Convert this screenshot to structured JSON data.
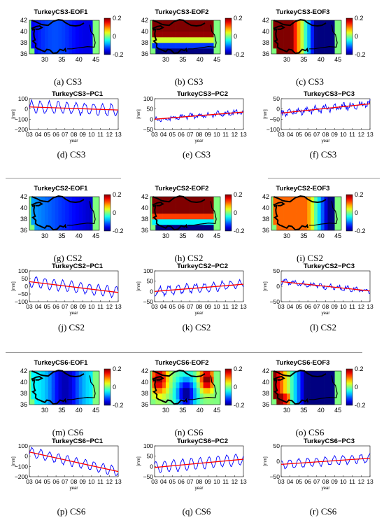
{
  "map_panels": [
    {
      "title": "TurkeyCS3-EOF1",
      "caption": "(a) CS3",
      "field": "cs3_eof1"
    },
    {
      "title": "TurkeyCS3-EOF2",
      "caption": "(b) CS3",
      "field": "cs3_eof2"
    },
    {
      "title": "TurkeyCS3-EOF3",
      "caption": "(c) CS3",
      "field": "cs3_eof3"
    },
    {
      "title": "TurkeyCS2-EOF1",
      "caption": "(g) CS2",
      "field": "cs2_eof1"
    },
    {
      "title": "TurkeyCS2-EOF2",
      "caption": "(h) CS2",
      "field": "cs2_eof2"
    },
    {
      "title": "TurkeyCS2-EOF3",
      "caption": "(i) CS2",
      "field": "cs2_eof3"
    },
    {
      "title": "TurkeyCS6-EOF1",
      "caption": "(m) CS6",
      "field": "cs6_eof1"
    },
    {
      "title": "TurkeyCS6-EOF2",
      "caption": "(n) CS6",
      "field": "cs6_eof2"
    },
    {
      "title": "TurkeyCS6-EOF3",
      "caption": "(o) CS6",
      "field": "cs6_eof3"
    }
  ],
  "map_axes": {
    "x_ticks": [
      "30",
      "35",
      "40",
      "45"
    ],
    "y_ticks": [
      "42",
      "40",
      "38",
      "36"
    ],
    "colorbar_ticks": [
      "0.2",
      "0",
      "-0.2"
    ]
  },
  "chart_data": [
    {
      "type": "line",
      "title": "TurkeyCS3−PC1",
      "caption": "(d) CS3",
      "xlabel": "year",
      "ylabel": "[mm]",
      "ylim": [
        -200,
        100
      ],
      "yticks": [
        "100",
        "0",
        "−100",
        "−200"
      ],
      "x": [
        "03",
        "04",
        "05",
        "06",
        "07",
        "08",
        "09",
        "10",
        "11",
        "12",
        "13"
      ],
      "series_params": {
        "amp": 55,
        "noise": 15,
        "trend_start": 20,
        "trend_end": -10
      }
    },
    {
      "type": "line",
      "title": "TurkeyCS3−PC2",
      "caption": "(e) CS3",
      "xlabel": "year",
      "ylabel": "[mm]",
      "ylim": [
        -50,
        100
      ],
      "yticks": [
        "100",
        "50",
        "0",
        "−50"
      ],
      "x": [
        "03",
        "04",
        "05",
        "06",
        "07",
        "08",
        "09",
        "10",
        "11",
        "12",
        "13"
      ],
      "series_params": {
        "amp": 8,
        "noise": 10,
        "trend_start": 0,
        "trend_end": 35
      }
    },
    {
      "type": "line",
      "title": "TurkeyCS3−PC3",
      "caption": "(f) CS3",
      "xlabel": "year",
      "ylabel": "[mm]",
      "ylim": [
        -100,
        50
      ],
      "yticks": [
        "50",
        "0",
        "−50",
        "−100"
      ],
      "x": [
        "03",
        "04",
        "05",
        "06",
        "07",
        "08",
        "09",
        "10",
        "11",
        "12",
        "13"
      ],
      "series_params": {
        "amp": 10,
        "noise": 14,
        "trend_start": -20,
        "trend_end": 25
      }
    },
    {
      "type": "line",
      "title": "TurkeyCS2−PC1",
      "caption": "(j) CS2",
      "xlabel": "year",
      "ylabel": "[mm]",
      "ylim": [
        -100,
        100
      ],
      "yticks": [
        "100",
        "50",
        "0",
        "−50",
        "−100"
      ],
      "x": [
        "03",
        "04",
        "05",
        "06",
        "07",
        "08",
        "09",
        "10",
        "11",
        "12",
        "13"
      ],
      "series_params": {
        "amp": 35,
        "noise": 6,
        "trend_start": 30,
        "trend_end": -40
      }
    },
    {
      "type": "line",
      "title": "TurkeyCS2−PC2",
      "caption": "(k) CS2",
      "xlabel": "year",
      "ylabel": "[mm]",
      "ylim": [
        -50,
        100
      ],
      "yticks": [
        "100",
        "50",
        "0",
        "−50"
      ],
      "x": [
        "03",
        "04",
        "05",
        "06",
        "07",
        "08",
        "09",
        "10",
        "11",
        "12",
        "13"
      ],
      "series_params": {
        "amp": 20,
        "noise": 8,
        "trend_start": 0,
        "trend_end": 35
      }
    },
    {
      "type": "line",
      "title": "TurkeyCS2−PC3",
      "caption": "(l) CS2",
      "xlabel": "year",
      "ylabel": "[mm]",
      "ylim": [
        -50,
        50
      ],
      "yticks": [
        "50",
        "0",
        "−50"
      ],
      "x": [
        "03",
        "04",
        "05",
        "06",
        "07",
        "08",
        "09",
        "10",
        "11",
        "12",
        "13"
      ],
      "series_params": {
        "amp": 6,
        "noise": 6,
        "trend_start": 15,
        "trend_end": -15
      }
    },
    {
      "type": "line",
      "title": "TurkeyCS6−PC1",
      "caption": "(p) CS6",
      "xlabel": "year",
      "ylabel": "[mm]",
      "ylim": [
        -200,
        100
      ],
      "yticks": [
        "100",
        "0",
        "−100",
        "−200"
      ],
      "x": [
        "03",
        "04",
        "05",
        "06",
        "07",
        "08",
        "09",
        "10",
        "11",
        "12",
        "13"
      ],
      "series_params": {
        "amp": 45,
        "noise": 8,
        "trend_start": 40,
        "trend_end": -150
      }
    },
    {
      "type": "line",
      "title": "TurkeyCS6−PC2",
      "caption": "(q) CS6",
      "xlabel": "year",
      "ylabel": "[mm]",
      "ylim": [
        -50,
        100
      ],
      "yticks": [
        "100",
        "50",
        "0",
        "−50"
      ],
      "x": [
        "03",
        "04",
        "05",
        "06",
        "07",
        "08",
        "09",
        "10",
        "11",
        "12",
        "13"
      ],
      "series_params": {
        "amp": 28,
        "noise": 3,
        "trend_start": -5,
        "trend_end": 35
      }
    },
    {
      "type": "line",
      "title": "TurkeyCS6−PC3",
      "caption": "(r) CS6",
      "xlabel": "year",
      "ylabel": "[mm]",
      "ylim": [
        -50,
        50
      ],
      "yticks": [
        "50",
        "0",
        "−50"
      ],
      "x": [
        "03",
        "04",
        "05",
        "06",
        "07",
        "08",
        "09",
        "10",
        "11",
        "12",
        "13"
      ],
      "series_params": {
        "amp": 14,
        "noise": 3,
        "trend_start": -10,
        "trend_end": 10
      }
    }
  ],
  "colors": {
    "series_line": "#0000ff",
    "trend_line": "#ff0000",
    "land_bg": "#7fff7f",
    "coast": "#000000"
  }
}
